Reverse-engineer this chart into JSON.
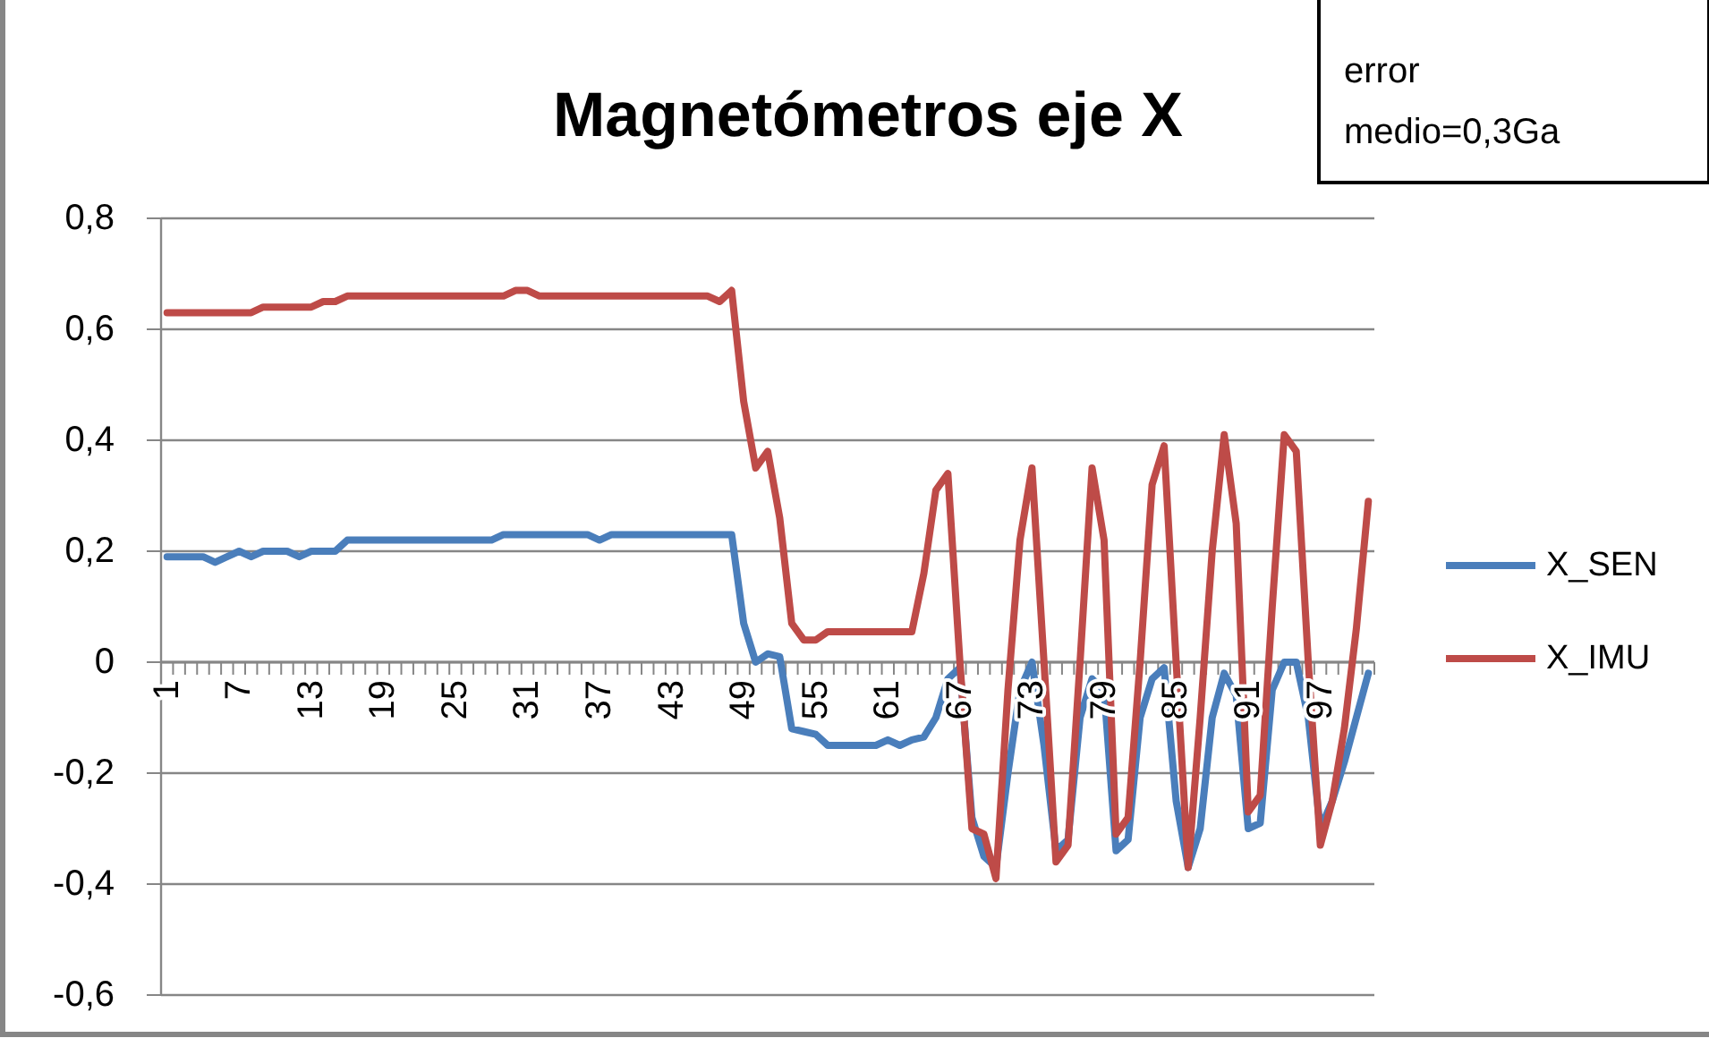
{
  "chart_data": {
    "type": "line",
    "title": "Magnetómetros eje X",
    "annotations": [
      "error medio=0,3Ga"
    ],
    "categories": [
      "1",
      null,
      null,
      null,
      null,
      null,
      "7",
      null,
      null,
      null,
      null,
      null,
      "13",
      null,
      null,
      null,
      null,
      null,
      "19",
      null,
      null,
      null,
      null,
      null,
      "25",
      null,
      null,
      null,
      null,
      null,
      "31",
      null,
      null,
      null,
      null,
      null,
      "37",
      null,
      null,
      null,
      null,
      null,
      "43",
      null,
      null,
      null,
      null,
      null,
      "49",
      null,
      null,
      null,
      null,
      null,
      "55",
      null,
      null,
      null,
      null,
      null,
      "61",
      null,
      null,
      null,
      null,
      null,
      "67",
      null,
      null,
      null,
      null,
      null,
      "73",
      null,
      null,
      null,
      null,
      null,
      "79",
      null,
      null,
      null,
      null,
      null,
      "85",
      null,
      null,
      null,
      null,
      null,
      "91",
      null,
      null,
      null,
      null,
      null,
      "97",
      null,
      null,
      null,
      null
    ],
    "series": [
      {
        "name": "X_SEN",
        "color": "#4a7ebb",
        "values": [
          0.19,
          0.19,
          0.19,
          0.19,
          0.18,
          0.19,
          0.2,
          0.19,
          0.2,
          0.2,
          0.2,
          0.19,
          0.2,
          0.2,
          0.2,
          0.22,
          0.22,
          0.22,
          0.22,
          0.22,
          0.22,
          0.22,
          0.22,
          0.22,
          0.22,
          0.22,
          0.22,
          0.22,
          0.23,
          0.23,
          0.23,
          0.23,
          0.23,
          0.23,
          0.23,
          0.23,
          0.22,
          0.23,
          0.23,
          0.23,
          0.23,
          0.23,
          0.23,
          0.23,
          0.23,
          0.23,
          0.23,
          0.23,
          0.07,
          0.0,
          0.015,
          0.01,
          -0.12,
          -0.125,
          -0.13,
          -0.15,
          -0.15,
          -0.15,
          -0.15,
          -0.15,
          -0.14,
          -0.15,
          -0.14,
          -0.135,
          -0.1,
          -0.03,
          -0.01,
          -0.28,
          -0.35,
          -0.37,
          -0.2,
          -0.05,
          0.0,
          -0.15,
          -0.34,
          -0.32,
          -0.1,
          -0.03,
          -0.05,
          -0.34,
          -0.32,
          -0.1,
          -0.03,
          -0.01,
          -0.25,
          -0.37,
          -0.3,
          -0.1,
          -0.02,
          -0.06,
          -0.3,
          -0.29,
          -0.05,
          0.0,
          0.0,
          -0.1,
          -0.3,
          -0.25,
          -0.18,
          -0.1,
          -0.02
        ]
      },
      {
        "name": "X_IMU",
        "color": "#be4b48",
        "values": [
          0.63,
          0.63,
          0.63,
          0.63,
          0.63,
          0.63,
          0.63,
          0.63,
          0.64,
          0.64,
          0.64,
          0.64,
          0.64,
          0.65,
          0.65,
          0.66,
          0.66,
          0.66,
          0.66,
          0.66,
          0.66,
          0.66,
          0.66,
          0.66,
          0.66,
          0.66,
          0.66,
          0.66,
          0.66,
          0.67,
          0.67,
          0.66,
          0.66,
          0.66,
          0.66,
          0.66,
          0.66,
          0.66,
          0.66,
          0.66,
          0.66,
          0.66,
          0.66,
          0.66,
          0.66,
          0.66,
          0.65,
          0.67,
          0.47,
          0.35,
          0.38,
          0.26,
          0.07,
          0.04,
          0.04,
          0.055,
          0.055,
          0.055,
          0.055,
          0.055,
          0.055,
          0.055,
          0.055,
          0.16,
          0.31,
          0.34,
          0.0,
          -0.3,
          -0.31,
          -0.39,
          -0.05,
          0.22,
          0.35,
          0.0,
          -0.36,
          -0.33,
          0.0,
          0.35,
          0.22,
          -0.31,
          -0.28,
          0.0,
          0.32,
          0.39,
          0.0,
          -0.37,
          -0.1,
          0.2,
          0.41,
          0.25,
          -0.27,
          -0.24,
          0.1,
          0.41,
          0.38,
          0.0,
          -0.33,
          -0.25,
          -0.12,
          0.06,
          0.29
        ]
      }
    ],
    "ylim": [
      -0.6,
      0.8
    ],
    "yticks": [
      {
        "value": -0.6,
        "label": "-0,6"
      },
      {
        "value": -0.4,
        "label": "-0,4"
      },
      {
        "value": -0.2,
        "label": "-0,2"
      },
      0,
      {
        "value": 0.2,
        "label": "0,2"
      },
      {
        "value": 0.4,
        "label": "0,4"
      },
      {
        "value": 0.6,
        "label": "0,6"
      },
      {
        "value": 0.8,
        "label": "0,8"
      }
    ],
    "grid": "y",
    "legend": "right",
    "marker": "none",
    "line_style": "solid"
  }
}
